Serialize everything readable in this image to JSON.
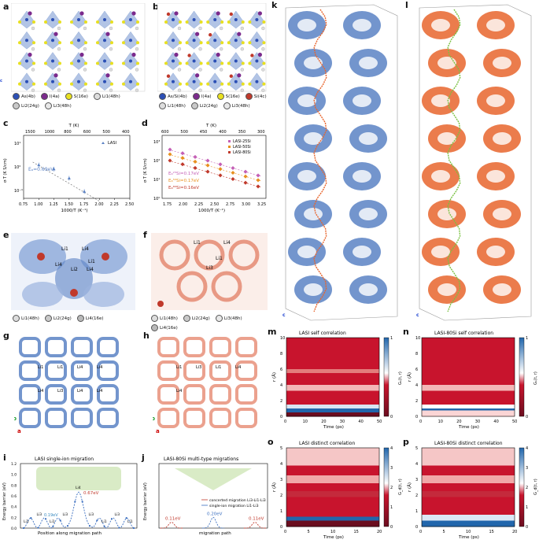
{
  "labels": {
    "a": "a",
    "b": "b",
    "c": "c",
    "d": "d",
    "e": "e",
    "f": "f",
    "g": "g",
    "h": "h",
    "i": "i",
    "j": "j",
    "k": "k",
    "l": "l",
    "m": "m",
    "n": "n",
    "o": "o",
    "p": "p"
  },
  "legend_a": [
    "As(4b)",
    "I(4a)",
    "S(16e)",
    "Li1(48h)",
    "Li2(24g)",
    "Li3(48h)"
  ],
  "legend_b": [
    "As/Si(4b)",
    "I(4a)",
    "S(16e)",
    "Si(4c)",
    "Li1(48h)",
    "Li2(24g)",
    "Li3(48h)"
  ],
  "legend_e": [
    "Li1(48h)",
    "Li2(24g)",
    "Li4(16e)"
  ],
  "legend_f": [
    "Li1(48h)",
    "Li2(24g)",
    "Li3(48h)",
    "Li4(16e)"
  ],
  "axes": {
    "a": "a",
    "b": "b",
    "c": "c"
  },
  "colors": {
    "blue": "#5b82c4",
    "orange": "#e8652d",
    "salmon": "#e7907a",
    "heat_dark": "#6b0d1f",
    "heat_red": "#c8142d",
    "heat_pink": "#f5c6c6",
    "heat_blue": "#2166ac"
  },
  "chart_data": [
    {
      "panel": "c",
      "type": "scatter",
      "xlabel": "1000/T (K⁻¹)",
      "ylabel": "σ·T (K S/cm)",
      "toplabel": "T (K)",
      "xticks": [
        "0.75",
        "1.00",
        "1.25",
        "1.50",
        "1.75",
        "2.00",
        "2.25",
        "2.50"
      ],
      "topticks": [
        "1500",
        "1000",
        "800",
        "600",
        "500",
        "400"
      ],
      "yticks": [
        "10¹",
        "10⁰",
        "10⁻¹"
      ],
      "series": [
        {
          "name": "LASI",
          "x": [
            1.0,
            1.25,
            1.5,
            1.75
          ],
          "y": [
            1.2,
            0.8,
            0.33,
            0.09
          ]
        }
      ],
      "annotation": "Eₐ=0.69eV"
    },
    {
      "panel": "d",
      "type": "scatter",
      "xlabel": "1000/T (K⁻¹)",
      "ylabel": "σ·T (K S/cm)",
      "toplabel": "T (K)",
      "xticks": [
        "1.75",
        "2.00",
        "2.25",
        "2.50",
        "2.75",
        "3.00",
        "3.25"
      ],
      "topticks": [
        "600",
        "500",
        "450",
        "400",
        "350",
        "300"
      ],
      "yticks": [
        "10³",
        "10²",
        "10¹",
        "10⁰"
      ],
      "series": [
        {
          "name": "LASI-25Si"
        },
        {
          "name": "LASI-50Si"
        },
        {
          "name": "LASI-80Si"
        }
      ],
      "annotations": [
        "Eₐ²⁵Si=0.17eV",
        "Eₐ⁵⁰Si=0.17eV",
        "Eₐ⁸⁰Si=0.16eV"
      ]
    },
    {
      "panel": "i",
      "type": "line",
      "title": "LASI single-ion migration",
      "xlabel": "Position along migration path",
      "ylabel": "Energy barrier (eV)",
      "yticks": [
        "0.0",
        "0.2",
        "0.4",
        "0.6",
        "0.8",
        "1.0",
        "1.2"
      ],
      "annotations": [
        "0.67eV",
        "0.19eV"
      ],
      "site_labels": [
        "Li1",
        "Li3",
        "Li1",
        "Li3",
        "Li4",
        "Li3",
        "Li1",
        "Li3",
        "Li1"
      ]
    },
    {
      "panel": "j",
      "type": "line",
      "title": "LASI-80Si multi-type migrations",
      "xlabel": "migration path",
      "ylabel": "Energy barrier (eV)",
      "annotations": [
        "0.11eV",
        "0.20eV",
        "0.11eV"
      ],
      "series": [
        {
          "name": "concerted migration Li3-Li1-Li3"
        },
        {
          "name": "single-ion migration Li1-Li3"
        }
      ]
    },
    {
      "panel": "m",
      "type": "heatmap",
      "title": "LASI self correlation",
      "xlabel": "Time (ps)",
      "ylabel": "r (Å)",
      "cbar": "Gₛ(t, r)",
      "xticks": [
        "0",
        "10",
        "20",
        "30",
        "40",
        "50"
      ],
      "yticks": [
        "0",
        "2",
        "4",
        "6",
        "8",
        "10"
      ],
      "cticks": [
        "0",
        "1"
      ]
    },
    {
      "panel": "n",
      "type": "heatmap",
      "title": "LASI-80Si self correlation",
      "xlabel": "Time (ps)",
      "ylabel": "r (Å)",
      "cbar": "Gₛ(t, r)",
      "xticks": [
        "0",
        "10",
        "20",
        "30",
        "40",
        "50"
      ],
      "yticks": [
        "0",
        "2",
        "4",
        "6",
        "8",
        "10"
      ],
      "cticks": [
        "0",
        "1"
      ]
    },
    {
      "panel": "o",
      "type": "heatmap",
      "title": "LASI distinct correlation",
      "xlabel": "Time (ps)",
      "ylabel": "r (Å)",
      "cbar": "G_d(t, r)",
      "xticks": [
        "0",
        "5",
        "10",
        "15",
        "20"
      ],
      "yticks": [
        "0",
        "1",
        "2",
        "3",
        "4",
        "5"
      ],
      "cticks": [
        "0",
        "1",
        "2",
        "3",
        "4"
      ]
    },
    {
      "panel": "p",
      "type": "heatmap",
      "title": "LASI-80Si distinct correlation",
      "xlabel": "Time (ps)",
      "ylabel": "r (Å)",
      "cbar": "G_d(t, r)",
      "xticks": [
        "0",
        "5",
        "10",
        "15",
        "20"
      ],
      "yticks": [
        "0",
        "1",
        "2",
        "3",
        "4",
        "5"
      ],
      "cticks": [
        "0",
        "1",
        "2",
        "3",
        "4"
      ]
    }
  ],
  "e_sites": [
    "Li1",
    "Li4",
    "Li4",
    "Li2",
    "Li1",
    "Li4"
  ],
  "f_sites": [
    "Li1",
    "Li3",
    "Li4",
    "Li1"
  ],
  "g_sites": [
    "Li1",
    "Li1",
    "Li4",
    "Li4",
    "Li4",
    "Li3",
    "Li4",
    "Li4"
  ],
  "h_sites": [
    "Li1",
    "Li3",
    "Li1",
    "Li4",
    "Li4"
  ]
}
